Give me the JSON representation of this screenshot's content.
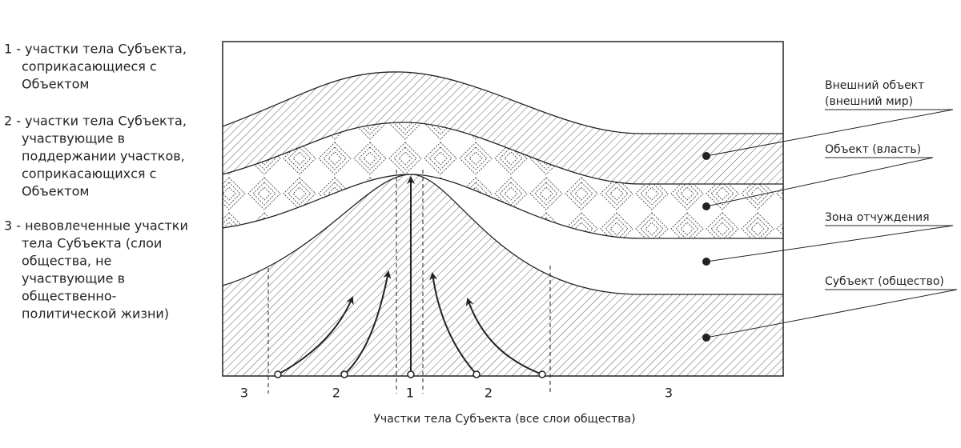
{
  "legend": [
    {
      "lines": [
        "1 - участки тела Субъекта,",
        "соприкасающиеся с",
        "Объектом"
      ]
    },
    {
      "lines": [
        "2 - участки тела Субъекта,",
        "участвующие в",
        "поддержании участков,",
        "соприкасающихся с",
        "Объектом"
      ]
    },
    {
      "lines": [
        "3 - невовлеченные участки",
        "тела Субъекта (слои",
        "общества, не",
        "участвующие в",
        "общественно-",
        "политической жизни)"
      ]
    }
  ],
  "labels": [
    {
      "lines": [
        "Внешний объект",
        "(внешний мир)"
      ]
    },
    {
      "lines": [
        "Объект (власть)"
      ]
    },
    {
      "lines": [
        "Зона отчуждения"
      ]
    },
    {
      "lines": [
        "Субъект (общество)"
      ]
    }
  ],
  "zones": [
    "3",
    "2",
    "1",
    "2",
    "3"
  ],
  "caption": "Участки тела Субъекта (все слои общества)"
}
